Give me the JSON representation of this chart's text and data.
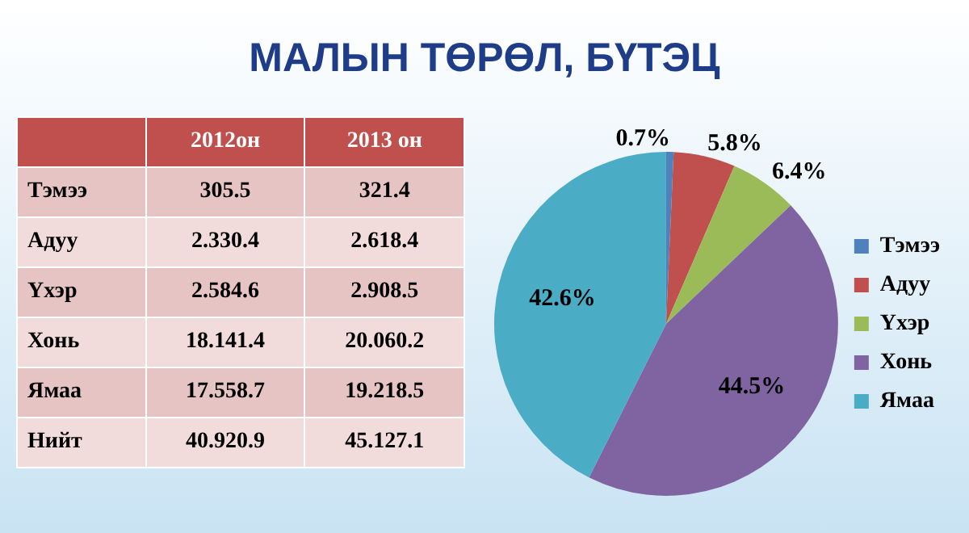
{
  "chart_data": [
    {
      "type": "other",
      "title": "МАЛЫН ТӨРӨЛ, БҮТЭЦ",
      "annotations": [
        "2012он",
        "2013 он",
        "Тэмээ",
        "305.5",
        "321.4",
        "Адуу",
        "2.330.4",
        "2.618.4",
        "Үхэр",
        "2.584.6",
        "2.908.5",
        "Хонь",
        "18.141.4",
        "20.060.2",
        "Ямаа",
        "17.558.7",
        "19.218.5",
        "Нийт",
        "40.920.9",
        "45.127.1"
      ]
    },
    {
      "type": "pie",
      "categories": [
        "Тэмээ",
        "Адуу",
        "Үхэр",
        "Хонь",
        "Ямаа"
      ],
      "values": [
        0.7,
        5.8,
        6.4,
        44.5,
        42.6
      ],
      "colors": [
        "#4f81bd",
        "#c0504d",
        "#9bbb59",
        "#8064a2",
        "#4bacc6"
      ],
      "value_labels": [
        "0.7%",
        "5.8%",
        "6.4%",
        "44.5%",
        "42.6%"
      ],
      "legend": "right"
    }
  ]
}
